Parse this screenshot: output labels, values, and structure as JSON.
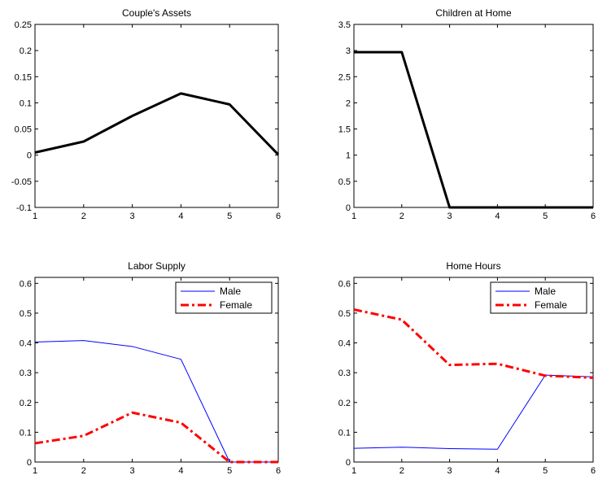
{
  "chart_data": [
    {
      "type": "line",
      "title": "Couple's Assets",
      "xlabel": "",
      "ylabel": "",
      "x": [
        1,
        2,
        3,
        4,
        5,
        6
      ],
      "xlim": [
        1,
        6
      ],
      "ylim": [
        -0.1,
        0.25
      ],
      "xticks": [
        "1",
        "2",
        "3",
        "4",
        "5",
        "6"
      ],
      "yticks": [
        "-0.1",
        "-0.05",
        "0",
        "0.05",
        "0.1",
        "0.15",
        "0.2",
        "0.25"
      ],
      "legend": null,
      "series": [
        {
          "values": [
            0.005,
            0.026,
            0.075,
            0.118,
            0.097,
            0.001
          ],
          "color": "#000000",
          "style": "solid"
        }
      ]
    },
    {
      "type": "line",
      "title": "Children at Home",
      "xlabel": "",
      "ylabel": "",
      "x": [
        1,
        2,
        3,
        4,
        5,
        6
      ],
      "xlim": [
        1,
        6
      ],
      "ylim": [
        0,
        3.5
      ],
      "xticks": [
        "1",
        "2",
        "3",
        "4",
        "5",
        "6"
      ],
      "yticks": [
        "0",
        "0.5",
        "1",
        "1.5",
        "2",
        "2.5",
        "3",
        "3.5"
      ],
      "legend": null,
      "series": [
        {
          "values": [
            2.97,
            2.97,
            0,
            0,
            0,
            0
          ],
          "color": "#000000",
          "style": "solid"
        }
      ]
    },
    {
      "type": "line",
      "title": "Labor Supply",
      "xlabel": "",
      "ylabel": "",
      "x": [
        1,
        2,
        3,
        4,
        5,
        6
      ],
      "xlim": [
        1,
        6
      ],
      "ylim": [
        0,
        0.62
      ],
      "xticks": [
        "1",
        "2",
        "3",
        "4",
        "5",
        "6"
      ],
      "yticks": [
        "0",
        "0.1",
        "0.2",
        "0.3",
        "0.4",
        "0.5",
        "0.6"
      ],
      "legend": "top-right",
      "series": [
        {
          "name": "Male",
          "values": [
            0.403,
            0.408,
            0.388,
            0.345,
            0.0,
            0.0
          ],
          "color": "#0000ff",
          "style": "solid"
        },
        {
          "name": "Female",
          "values": [
            0.063,
            0.088,
            0.166,
            0.132,
            0.0,
            0.0
          ],
          "color": "#ff0000",
          "style": "dashdot"
        }
      ]
    },
    {
      "type": "line",
      "title": "Home Hours",
      "xlabel": "",
      "ylabel": "",
      "x": [
        1,
        2,
        3,
        4,
        5,
        6
      ],
      "xlim": [
        1,
        6
      ],
      "ylim": [
        0,
        0.62
      ],
      "xticks": [
        "1",
        "2",
        "3",
        "4",
        "5",
        "6"
      ],
      "yticks": [
        "0",
        "0.1",
        "0.2",
        "0.3",
        "0.4",
        "0.5",
        "0.6"
      ],
      "legend": "top-right",
      "series": [
        {
          "name": "Male",
          "values": [
            0.046,
            0.05,
            0.045,
            0.043,
            0.292,
            0.286
          ],
          "color": "#0000ff",
          "style": "solid"
        },
        {
          "name": "Female",
          "values": [
            0.512,
            0.478,
            0.326,
            0.33,
            0.29,
            0.283
          ],
          "color": "#ff0000",
          "style": "dashdot"
        }
      ]
    }
  ]
}
